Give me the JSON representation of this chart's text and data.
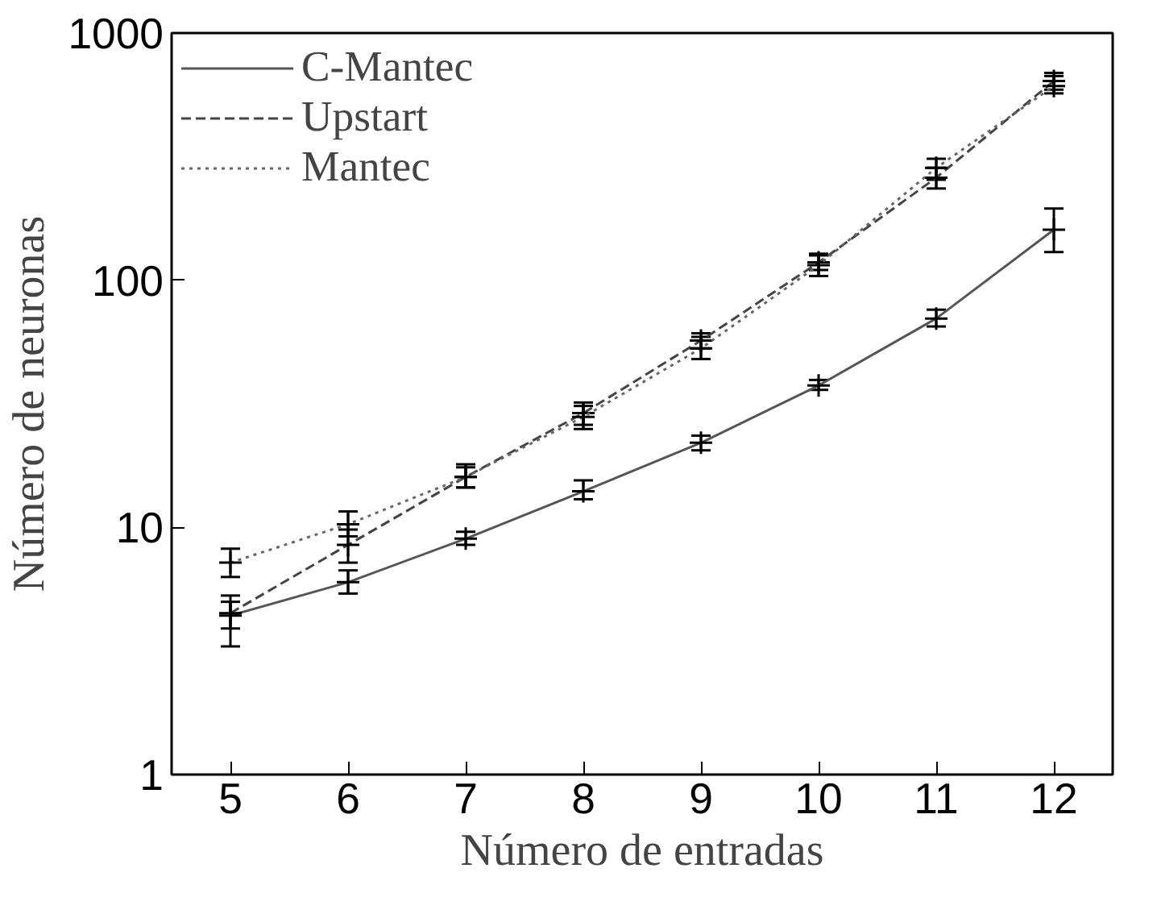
{
  "chart_data": {
    "type": "line",
    "xlabel": "Número de entradas",
    "ylabel": "Número de neuronas",
    "x": [
      5,
      6,
      7,
      8,
      9,
      10,
      11,
      12
    ],
    "xlim": [
      4.5,
      12.5
    ],
    "xticks": [
      5,
      6,
      7,
      8,
      9,
      10,
      11,
      12
    ],
    "ylim": [
      1,
      1000
    ],
    "yticks": [
      1,
      10,
      100,
      1000
    ],
    "log": true,
    "grid": false,
    "legend": "top left",
    "series": [
      {
        "name": "C-Mantec",
        "color": "#555555",
        "line_style": "solid",
        "marker": "cross",
        "values": [
          4.4,
          6,
          9,
          14,
          22,
          37.5,
          70,
          160
        ],
        "errors": [
          [
            3.9,
            5.0
          ],
          [
            5.4,
            6.7
          ],
          [
            8.5,
            9.6
          ],
          [
            13,
            15.5
          ],
          [
            20.5,
            23.5
          ],
          [
            36,
            39.5
          ],
          [
            65,
            76
          ],
          [
            130,
            195
          ]
        ]
      },
      {
        "name": "Upstart",
        "color": "#444444",
        "line_style": "dashed",
        "marker": "cross",
        "values": [
          4.5,
          8.5,
          16,
          29,
          57,
          118,
          260,
          640
        ],
        "errors": [
          [
            3.3,
            5.3
          ],
          [
            7.2,
            9.8
          ],
          [
            14.5,
            17.5
          ],
          [
            26,
            32
          ],
          [
            53,
            61
          ],
          [
            110,
            128
          ],
          [
            235,
            285
          ],
          [
            590,
            690
          ]
        ]
      },
      {
        "name": "Mantec",
        "color": "#666666",
        "line_style": "dotted",
        "marker": "cross",
        "values": [
          7.2,
          10.3,
          16,
          28,
          53,
          115,
          285,
          610
        ],
        "errors": [
          [
            6.3,
            8.2
          ],
          [
            9.2,
            11.6
          ],
          [
            14.5,
            18
          ],
          [
            25,
            31
          ],
          [
            48,
            59
          ],
          [
            104,
            126
          ],
          [
            255,
            310
          ],
          [
            570,
            670
          ]
        ]
      }
    ]
  }
}
